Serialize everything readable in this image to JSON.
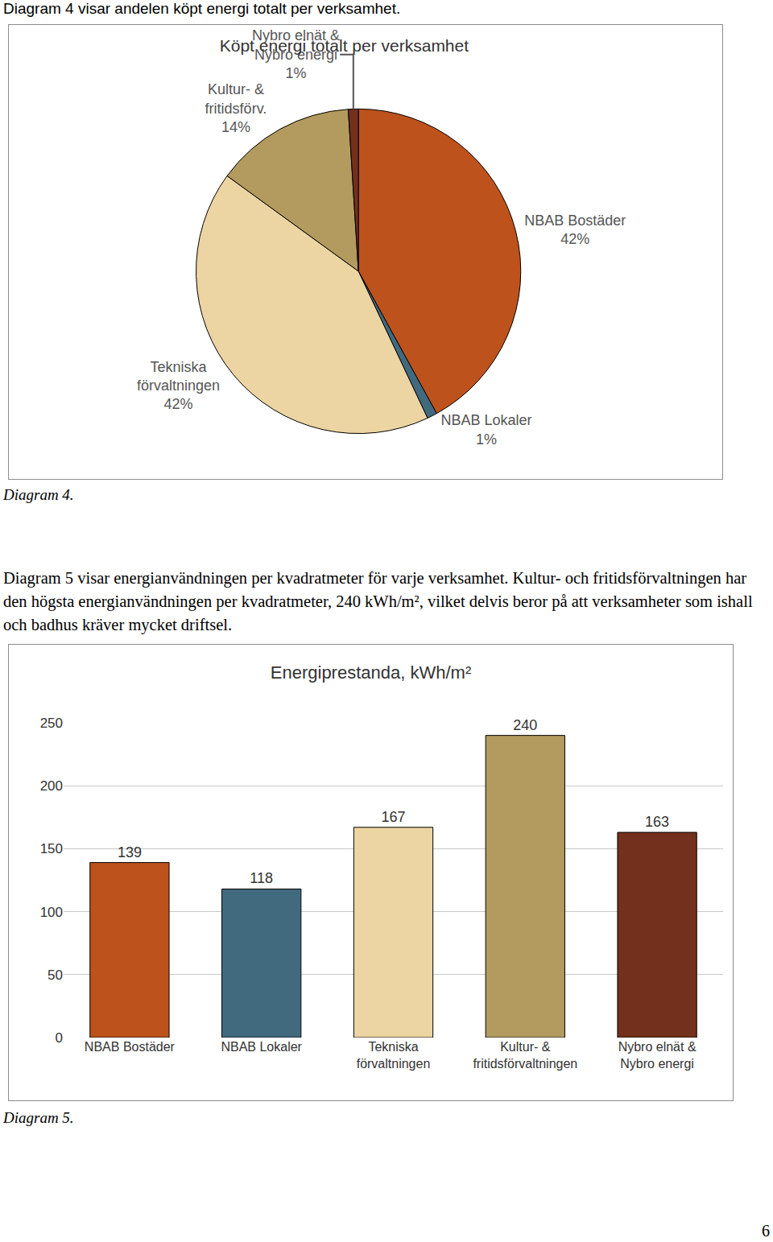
{
  "page": {
    "intro": "Diagram 4 visar andelen köpt energi totalt per verksamhet.",
    "caption_4": "Diagram 4.",
    "paragraph": "Diagram 5 visar energianvändningen per kvadratmeter för varje verksamhet. Kultur- och fritidsförvaltningen har den högsta energianvändningen per kvadratmeter, 240 kWh/m², vilket delvis beror på att verksamheter som ishall och badhus kräver mycket driftsel.",
    "caption_5": "Diagram 5.",
    "page_number": "6"
  },
  "chart_data": [
    {
      "type": "pie",
      "title": "Köpt energi totalt per verksamhet",
      "categories": [
        "NBAB Bostäder",
        "NBAB Lokaler",
        "Tekniska förvaltningen",
        "Kultur- & fritidsförv.",
        "Nybro elnät & Nybro energi"
      ],
      "values": [
        42,
        1,
        42,
        14,
        1
      ],
      "value_labels": [
        "42%",
        "1%",
        "42%",
        "14%",
        "1%"
      ],
      "colors": [
        "#bd521c",
        "#426a7e",
        "#ecd4a3",
        "#b39a5e",
        "#73301c"
      ],
      "data_labels": true
    },
    {
      "type": "bar",
      "title": "Energiprestanda, kWh/m²",
      "categories": [
        "NBAB Bostäder",
        "NBAB Lokaler",
        "Tekniska förvaltningen",
        "Kultur- & fritidsförvaltningen",
        "Nybro elnät & Nybro energi"
      ],
      "values": [
        139,
        118,
        167,
        240,
        163
      ],
      "colors": [
        "#bd521c",
        "#426a7e",
        "#ecd4a3",
        "#b39a5e",
        "#73301c"
      ],
      "ylim": [
        0,
        250
      ],
      "yticks": [
        0,
        50,
        100,
        150,
        200,
        250
      ],
      "grid": true,
      "data_labels": true
    }
  ]
}
